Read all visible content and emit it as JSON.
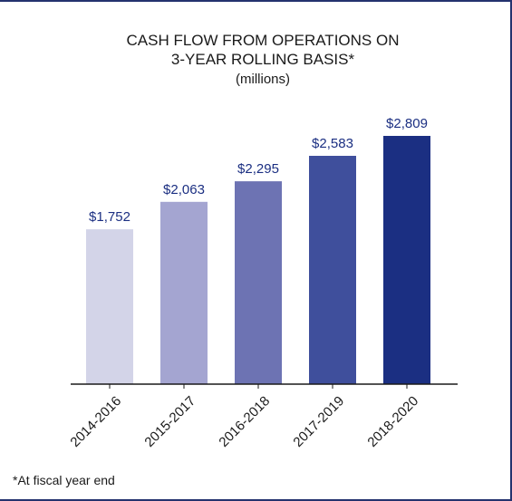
{
  "chart_data": {
    "type": "bar",
    "title_lines": [
      "CASH FLOW FROM OPERATIONS ON",
      "3-YEAR ROLLING BASIS*"
    ],
    "subtitle": "(millions)",
    "categories": [
      "2014-2016",
      "2015-2017",
      "2016-2018",
      "2017-2019",
      "2018-2020"
    ],
    "values": [
      1752,
      2063,
      2295,
      2583,
      2809
    ],
    "value_labels": [
      "$1,752",
      "$2,063",
      "$2,295",
      "$2,583",
      "$2,809"
    ],
    "bar_colors": [
      "#d3d4e8",
      "#a4a5d1",
      "#6d73b3",
      "#3f4f9c",
      "#1b2f82"
    ],
    "label_color": "#1b2f82",
    "axis_color": "#1a1a1a",
    "xlabel": "",
    "ylabel": "",
    "grid": false,
    "legend": "none"
  },
  "footnote": "*At fiscal year end"
}
